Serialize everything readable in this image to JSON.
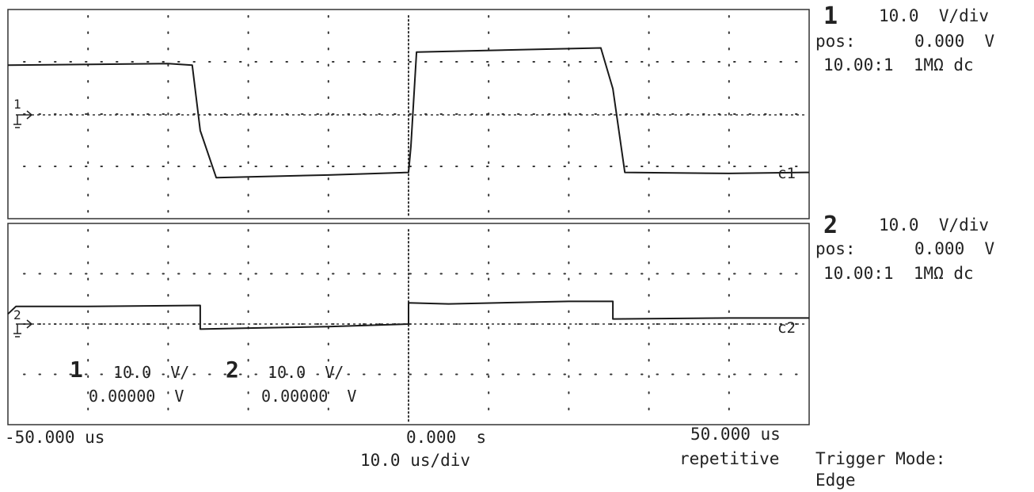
{
  "chart_data": {
    "type": "line",
    "x_axis": {
      "min": -50,
      "max": 50,
      "unit": "us",
      "divisions": 10
    },
    "y_axis": {
      "divisions_per_panel": 4,
      "unit": "V",
      "grid": "dotted"
    },
    "panels": [
      {
        "channel": "1",
        "scale": "10.0  V/div",
        "pos_label": "pos:",
        "pos_value": "0.000  V",
        "probe": "10.00:1  1MΩ dc",
        "trace_tag": "c1",
        "ground_marker": "1",
        "series": {
          "x": [
            -50,
            -30,
            -27,
            -26,
            -24,
            -10,
            0,
            0.3,
            1,
            15,
            24,
            25.5,
            27,
            40,
            50
          ],
          "y": [
            0.95,
            0.98,
            0.95,
            -0.3,
            -1.2,
            -1.15,
            -1.1,
            -0.6,
            1.2,
            1.25,
            1.28,
            0.5,
            -1.1,
            -1.12,
            -1.1
          ]
        }
      },
      {
        "channel": "2",
        "scale": "10.0  V/div",
        "pos_label": "pos:",
        "pos_value": "0.000  V",
        "probe": "10.00:1  1MΩ dc",
        "trace_tag": "c2",
        "ground_marker": "2",
        "series": {
          "x": [
            -50,
            -49,
            -40,
            -26,
            -26,
            -20,
            -10,
            0,
            0,
            5,
            20,
            25.5,
            25.5,
            40,
            50
          ],
          "y": [
            0.2,
            0.35,
            0.35,
            0.37,
            -0.1,
            -0.08,
            -0.05,
            0.0,
            0.42,
            0.4,
            0.45,
            0.45,
            0.1,
            0.12,
            0.12
          ]
        }
      }
    ],
    "timebase": {
      "left": "-50.000 us",
      "center": "0.000  s",
      "right": "50.000 us",
      "scale": "10.0 us/div",
      "acquisition": "repetitive"
    },
    "trigger": {
      "label": "Trigger Mode:",
      "value": "Edge"
    },
    "overlay": {
      "ch1_num": "1",
      "ch1_scale": "10.0  V/",
      "ch1_offset": "0.00000  V",
      "ch2_num": "2",
      "ch2_scale": "10.0  V/",
      "ch2_offset": "0.00000  V"
    }
  }
}
